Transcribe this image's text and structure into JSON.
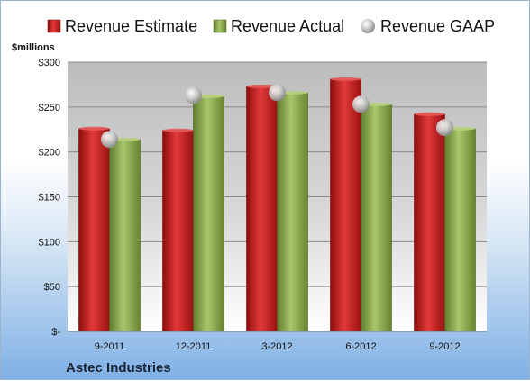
{
  "chart_data": {
    "type": "bar",
    "title": "",
    "ylabel": "$millions",
    "xlabel": "",
    "footer_label": "Astec Industries",
    "categories": [
      "9-2011",
      "12-2011",
      "3-2012",
      "6-2012",
      "9-2012"
    ],
    "ylim": [
      0,
      300
    ],
    "yticks": [
      {
        "value": 0,
        "label": "$-"
      },
      {
        "value": 50,
        "label": "$50"
      },
      {
        "value": 100,
        "label": "$100"
      },
      {
        "value": 150,
        "label": "$150"
      },
      {
        "value": 200,
        "label": "$200"
      },
      {
        "value": 250,
        "label": "$250"
      },
      {
        "value": 300,
        "label": "$300"
      }
    ],
    "series": [
      {
        "name": "Revenue Estimate",
        "kind": "bar",
        "color": "#cc1f1f",
        "values": [
          226,
          224,
          273,
          281,
          242
        ]
      },
      {
        "name": "Revenue Actual",
        "kind": "bar",
        "color": "#8db04f",
        "values": [
          214,
          262,
          266,
          253,
          226
        ]
      },
      {
        "name": "Revenue GAAP",
        "kind": "marker",
        "color": "#b8b8b8",
        "values": [
          214,
          263,
          266,
          253,
          227
        ]
      }
    ],
    "grid": true,
    "legend_position": "top"
  }
}
